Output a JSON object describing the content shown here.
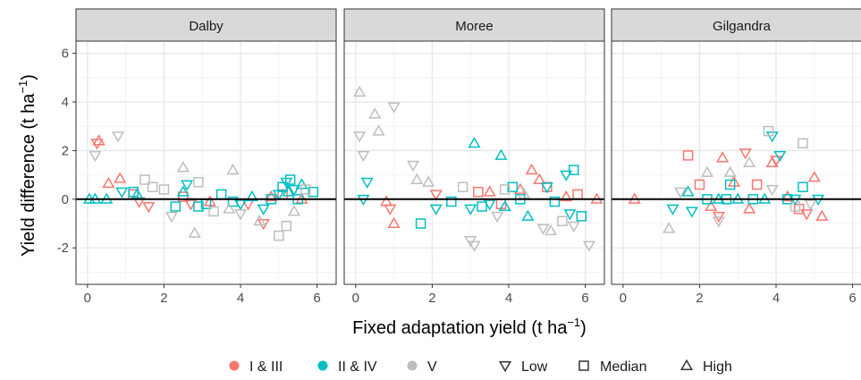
{
  "chart_data": {
    "type": "scatter",
    "xlabel": "Fixed adaptation yield (t  ha",
    "xlabel_sup": "−1",
    "xlabel_end": ")",
    "ylabel": "Yield difference (t  ha",
    "ylabel_sup": "−1",
    "ylabel_end": ")",
    "xlim": [
      -0.3,
      6.5
    ],
    "ylim": [
      -3.5,
      6.5
    ],
    "x_ticks": [
      0,
      2,
      4,
      6
    ],
    "y_ticks": [
      -2,
      0,
      2,
      4,
      6
    ],
    "grid": true,
    "legend_position": "bottom",
    "colors": {
      "I & III": "#f8766d",
      "II & IV": "#00bfc4",
      "V": "#bebebe"
    },
    "legend": {
      "colors": [
        "I & III",
        "II & IV",
        "V"
      ],
      "shapes": [
        {
          "label": "Low",
          "shape": "down"
        },
        {
          "label": "Median",
          "shape": "square"
        },
        {
          "label": "High",
          "shape": "up"
        }
      ]
    },
    "panels": [
      {
        "title": "Dalby",
        "points": [
          {
            "x": 0.25,
            "y": 2.3,
            "g": "I & III",
            "s": "down"
          },
          {
            "x": 0.3,
            "y": 2.4,
            "g": "I & III",
            "s": "up"
          },
          {
            "x": 0.55,
            "y": 0.65,
            "g": "I & III",
            "s": "up"
          },
          {
            "x": 0.85,
            "y": 0.85,
            "g": "I & III",
            "s": "up"
          },
          {
            "x": 1.2,
            "y": 0.2,
            "g": "I & III",
            "s": "square"
          },
          {
            "x": 1.35,
            "y": -0.1,
            "g": "I & III",
            "s": "down"
          },
          {
            "x": 1.6,
            "y": -0.3,
            "g": "I & III",
            "s": "down"
          },
          {
            "x": 2.5,
            "y": 0.1,
            "g": "I & III",
            "s": "square"
          },
          {
            "x": 2.7,
            "y": -0.2,
            "g": "I & III",
            "s": "down"
          },
          {
            "x": 3.2,
            "y": -0.1,
            "g": "I & III",
            "s": "up"
          },
          {
            "x": 4.2,
            "y": -0.2,
            "g": "I & III",
            "s": "down"
          },
          {
            "x": 4.6,
            "y": -1.0,
            "g": "I & III",
            "s": "down"
          },
          {
            "x": 4.8,
            "y": 0.1,
            "g": "I & III",
            "s": "up"
          },
          {
            "x": 5.1,
            "y": 0.2,
            "g": "I & III",
            "s": "square"
          },
          {
            "x": 5.6,
            "y": 0.0,
            "g": "I & III",
            "s": "up"
          },
          {
            "x": 0.05,
            "y": 0.0,
            "g": "II & IV",
            "s": "up"
          },
          {
            "x": 0.2,
            "y": 0.0,
            "g": "II & IV",
            "s": "up"
          },
          {
            "x": 0.5,
            "y": 0.0,
            "g": "II & IV",
            "s": "up"
          },
          {
            "x": 0.9,
            "y": 0.3,
            "g": "II & IV",
            "s": "down"
          },
          {
            "x": 1.2,
            "y": 0.3,
            "g": "II & IV",
            "s": "square"
          },
          {
            "x": 1.3,
            "y": 0.2,
            "g": "II & IV",
            "s": "up"
          },
          {
            "x": 2.3,
            "y": -0.3,
            "g": "II & IV",
            "s": "square"
          },
          {
            "x": 2.5,
            "y": 0.3,
            "g": "II & IV",
            "s": "up"
          },
          {
            "x": 2.6,
            "y": 0.6,
            "g": "II & IV",
            "s": "down"
          },
          {
            "x": 2.9,
            "y": -0.3,
            "g": "II & IV",
            "s": "square"
          },
          {
            "x": 3.1,
            "y": -0.2,
            "g": "II & IV",
            "s": "square"
          },
          {
            "x": 3.5,
            "y": 0.2,
            "g": "II & IV",
            "s": "square"
          },
          {
            "x": 3.8,
            "y": -0.1,
            "g": "II & IV",
            "s": "square"
          },
          {
            "x": 4.0,
            "y": -0.2,
            "g": "II & IV",
            "s": "down"
          },
          {
            "x": 4.3,
            "y": 0.1,
            "g": "II & IV",
            "s": "up"
          },
          {
            "x": 4.6,
            "y": -0.4,
            "g": "II & IV",
            "s": "down"
          },
          {
            "x": 4.8,
            "y": 0.0,
            "g": "II & IV",
            "s": "square"
          },
          {
            "x": 5.0,
            "y": 0.2,
            "g": "II & IV",
            "s": "down"
          },
          {
            "x": 5.1,
            "y": 0.5,
            "g": "II & IV",
            "s": "square"
          },
          {
            "x": 5.2,
            "y": 0.7,
            "g": "II & IV",
            "s": "down"
          },
          {
            "x": 5.25,
            "y": 0.3,
            "g": "II & IV",
            "s": "up"
          },
          {
            "x": 5.3,
            "y": 0.8,
            "g": "II & IV",
            "s": "square"
          },
          {
            "x": 5.4,
            "y": 0.4,
            "g": "II & IV",
            "s": "down"
          },
          {
            "x": 5.5,
            "y": 0.0,
            "g": "II & IV",
            "s": "square"
          },
          {
            "x": 5.6,
            "y": 0.6,
            "g": "II & IV",
            "s": "up"
          },
          {
            "x": 5.9,
            "y": 0.3,
            "g": "II & IV",
            "s": "square"
          },
          {
            "x": 0.2,
            "y": 1.8,
            "g": "V",
            "s": "down"
          },
          {
            "x": 0.8,
            "y": 2.6,
            "g": "V",
            "s": "down"
          },
          {
            "x": 1.5,
            "y": 0.8,
            "g": "V",
            "s": "square"
          },
          {
            "x": 1.7,
            "y": 0.5,
            "g": "V",
            "s": "square"
          },
          {
            "x": 2.0,
            "y": 0.4,
            "g": "V",
            "s": "square"
          },
          {
            "x": 2.2,
            "y": -0.7,
            "g": "V",
            "s": "down"
          },
          {
            "x": 2.5,
            "y": 1.3,
            "g": "V",
            "s": "up"
          },
          {
            "x": 2.8,
            "y": -1.4,
            "g": "V",
            "s": "up"
          },
          {
            "x": 2.9,
            "y": 0.7,
            "g": "V",
            "s": "square"
          },
          {
            "x": 3.3,
            "y": -0.5,
            "g": "V",
            "s": "square"
          },
          {
            "x": 3.7,
            "y": -0.4,
            "g": "V",
            "s": "up"
          },
          {
            "x": 3.8,
            "y": 1.2,
            "g": "V",
            "s": "up"
          },
          {
            "x": 4.0,
            "y": -0.6,
            "g": "V",
            "s": "down"
          },
          {
            "x": 4.5,
            "y": -0.9,
            "g": "V",
            "s": "up"
          },
          {
            "x": 5.0,
            "y": -1.5,
            "g": "V",
            "s": "square"
          },
          {
            "x": 5.2,
            "y": -1.1,
            "g": "V",
            "s": "square"
          },
          {
            "x": 5.4,
            "y": -0.5,
            "g": "V",
            "s": "up"
          },
          {
            "x": 5.7,
            "y": 0.4,
            "g": "V",
            "s": "square"
          }
        ]
      },
      {
        "title": "Moree",
        "points": [
          {
            "x": 0.8,
            "y": -0.1,
            "g": "I & III",
            "s": "up"
          },
          {
            "x": 0.9,
            "y": -0.4,
            "g": "I & III",
            "s": "down"
          },
          {
            "x": 1.0,
            "y": -1.0,
            "g": "I & III",
            "s": "up"
          },
          {
            "x": 2.1,
            "y": 0.2,
            "g": "I & III",
            "s": "down"
          },
          {
            "x": 3.2,
            "y": 0.3,
            "g": "I & III",
            "s": "square"
          },
          {
            "x": 3.5,
            "y": 0.3,
            "g": "I & III",
            "s": "up"
          },
          {
            "x": 3.8,
            "y": -0.2,
            "g": "I & III",
            "s": "square"
          },
          {
            "x": 4.3,
            "y": 0.4,
            "g": "I & III",
            "s": "up"
          },
          {
            "x": 4.6,
            "y": 1.2,
            "g": "I & III",
            "s": "up"
          },
          {
            "x": 4.8,
            "y": 0.8,
            "g": "I & III",
            "s": "up"
          },
          {
            "x": 5.0,
            "y": 0.5,
            "g": "I & III",
            "s": "square"
          },
          {
            "x": 5.5,
            "y": 0.1,
            "g": "I & III",
            "s": "up"
          },
          {
            "x": 5.8,
            "y": 0.2,
            "g": "I & III",
            "s": "square"
          },
          {
            "x": 6.3,
            "y": 0.0,
            "g": "I & III",
            "s": "up"
          },
          {
            "x": 0.2,
            "y": 0.0,
            "g": "II & IV",
            "s": "down"
          },
          {
            "x": 0.3,
            "y": 0.7,
            "g": "II & IV",
            "s": "down"
          },
          {
            "x": 1.7,
            "y": -1.0,
            "g": "II & IV",
            "s": "square"
          },
          {
            "x": 2.1,
            "y": -0.4,
            "g": "II & IV",
            "s": "down"
          },
          {
            "x": 2.5,
            "y": -0.1,
            "g": "II & IV",
            "s": "square"
          },
          {
            "x": 3.0,
            "y": -0.4,
            "g": "II & IV",
            "s": "down"
          },
          {
            "x": 3.1,
            "y": 2.3,
            "g": "II & IV",
            "s": "up"
          },
          {
            "x": 3.3,
            "y": -0.3,
            "g": "II & IV",
            "s": "square"
          },
          {
            "x": 3.5,
            "y": -0.2,
            "g": "II & IV",
            "s": "down"
          },
          {
            "x": 3.8,
            "y": 1.8,
            "g": "II & IV",
            "s": "up"
          },
          {
            "x": 3.9,
            "y": -0.3,
            "g": "II & IV",
            "s": "up"
          },
          {
            "x": 4.1,
            "y": 0.5,
            "g": "II & IV",
            "s": "square"
          },
          {
            "x": 4.3,
            "y": 0.0,
            "g": "II & IV",
            "s": "square"
          },
          {
            "x": 4.5,
            "y": -0.7,
            "g": "II & IV",
            "s": "up"
          },
          {
            "x": 5.0,
            "y": 0.5,
            "g": "II & IV",
            "s": "down"
          },
          {
            "x": 5.2,
            "y": -0.1,
            "g": "II & IV",
            "s": "square"
          },
          {
            "x": 5.5,
            "y": 1.0,
            "g": "II & IV",
            "s": "down"
          },
          {
            "x": 5.6,
            "y": -0.6,
            "g": "II & IV",
            "s": "down"
          },
          {
            "x": 5.7,
            "y": 1.2,
            "g": "II & IV",
            "s": "square"
          },
          {
            "x": 5.9,
            "y": -0.7,
            "g": "II & IV",
            "s": "square"
          },
          {
            "x": 0.1,
            "y": 4.4,
            "g": "V",
            "s": "up"
          },
          {
            "x": 0.1,
            "y": 2.6,
            "g": "V",
            "s": "down"
          },
          {
            "x": 0.2,
            "y": 1.8,
            "g": "V",
            "s": "down"
          },
          {
            "x": 0.5,
            "y": 3.5,
            "g": "V",
            "s": "up"
          },
          {
            "x": 0.6,
            "y": 2.8,
            "g": "V",
            "s": "up"
          },
          {
            "x": 1.0,
            "y": 3.8,
            "g": "V",
            "s": "down"
          },
          {
            "x": 1.5,
            "y": 1.4,
            "g": "V",
            "s": "down"
          },
          {
            "x": 1.6,
            "y": 0.8,
            "g": "V",
            "s": "up"
          },
          {
            "x": 1.9,
            "y": 0.7,
            "g": "V",
            "s": "up"
          },
          {
            "x": 2.8,
            "y": 0.5,
            "g": "V",
            "s": "square"
          },
          {
            "x": 3.0,
            "y": -1.7,
            "g": "V",
            "s": "down"
          },
          {
            "x": 3.1,
            "y": -1.9,
            "g": "V",
            "s": "down"
          },
          {
            "x": 3.7,
            "y": -0.7,
            "g": "V",
            "s": "down"
          },
          {
            "x": 3.9,
            "y": 0.4,
            "g": "V",
            "s": "square"
          },
          {
            "x": 4.4,
            "y": 0.2,
            "g": "V",
            "s": "up"
          },
          {
            "x": 4.9,
            "y": -1.2,
            "g": "V",
            "s": "down"
          },
          {
            "x": 5.1,
            "y": -1.3,
            "g": "V",
            "s": "up"
          },
          {
            "x": 5.4,
            "y": -0.9,
            "g": "V",
            "s": "square"
          },
          {
            "x": 5.7,
            "y": -1.1,
            "g": "V",
            "s": "down"
          },
          {
            "x": 6.1,
            "y": -1.9,
            "g": "V",
            "s": "down"
          }
        ]
      },
      {
        "title": "Gilgandra",
        "points": [
          {
            "x": 0.3,
            "y": 0.0,
            "g": "I & III",
            "s": "up"
          },
          {
            "x": 1.7,
            "y": 1.8,
            "g": "I & III",
            "s": "square"
          },
          {
            "x": 2.0,
            "y": 0.6,
            "g": "I & III",
            "s": "square"
          },
          {
            "x": 2.3,
            "y": -0.3,
            "g": "I & III",
            "s": "up"
          },
          {
            "x": 2.5,
            "y": -0.7,
            "g": "I & III",
            "s": "down"
          },
          {
            "x": 2.6,
            "y": 1.7,
            "g": "I & III",
            "s": "up"
          },
          {
            "x": 2.9,
            "y": 0.7,
            "g": "I & III",
            "s": "up"
          },
          {
            "x": 3.2,
            "y": 1.9,
            "g": "I & III",
            "s": "down"
          },
          {
            "x": 3.3,
            "y": -0.4,
            "g": "I & III",
            "s": "up"
          },
          {
            "x": 3.5,
            "y": 0.6,
            "g": "I & III",
            "s": "square"
          },
          {
            "x": 3.9,
            "y": 1.5,
            "g": "I & III",
            "s": "up"
          },
          {
            "x": 4.0,
            "y": 1.6,
            "g": "I & III",
            "s": "down"
          },
          {
            "x": 4.3,
            "y": 0.1,
            "g": "I & III",
            "s": "up"
          },
          {
            "x": 4.6,
            "y": -0.4,
            "g": "I & III",
            "s": "square"
          },
          {
            "x": 4.8,
            "y": -0.6,
            "g": "I & III",
            "s": "down"
          },
          {
            "x": 5.0,
            "y": 0.9,
            "g": "I & III",
            "s": "up"
          },
          {
            "x": 5.2,
            "y": -0.7,
            "g": "I & III",
            "s": "up"
          },
          {
            "x": 1.3,
            "y": -0.4,
            "g": "II & IV",
            "s": "down"
          },
          {
            "x": 1.7,
            "y": 0.3,
            "g": "II & IV",
            "s": "up"
          },
          {
            "x": 1.8,
            "y": -0.5,
            "g": "II & IV",
            "s": "down"
          },
          {
            "x": 2.2,
            "y": 0.0,
            "g": "II & IV",
            "s": "square"
          },
          {
            "x": 2.5,
            "y": 0.0,
            "g": "II & IV",
            "s": "up"
          },
          {
            "x": 2.7,
            "y": 0.0,
            "g": "II & IV",
            "s": "square"
          },
          {
            "x": 2.8,
            "y": 0.6,
            "g": "II & IV",
            "s": "square"
          },
          {
            "x": 3.0,
            "y": 0.0,
            "g": "II & IV",
            "s": "up"
          },
          {
            "x": 3.4,
            "y": 0.0,
            "g": "II & IV",
            "s": "square"
          },
          {
            "x": 3.7,
            "y": 0.0,
            "g": "II & IV",
            "s": "up"
          },
          {
            "x": 3.9,
            "y": 2.6,
            "g": "II & IV",
            "s": "down"
          },
          {
            "x": 4.1,
            "y": 1.8,
            "g": "II & IV",
            "s": "down"
          },
          {
            "x": 4.3,
            "y": 0.0,
            "g": "II & IV",
            "s": "square"
          },
          {
            "x": 4.5,
            "y": 0.0,
            "g": "II & IV",
            "s": "down"
          },
          {
            "x": 4.7,
            "y": 0.5,
            "g": "II & IV",
            "s": "square"
          },
          {
            "x": 5.1,
            "y": 0.0,
            "g": "II & IV",
            "s": "down"
          },
          {
            "x": 1.2,
            "y": -1.2,
            "g": "V",
            "s": "up"
          },
          {
            "x": 1.5,
            "y": 0.3,
            "g": "V",
            "s": "down"
          },
          {
            "x": 2.2,
            "y": 1.1,
            "g": "V",
            "s": "up"
          },
          {
            "x": 2.5,
            "y": -0.9,
            "g": "V",
            "s": "down"
          },
          {
            "x": 2.8,
            "y": 1.1,
            "g": "V",
            "s": "up"
          },
          {
            "x": 3.3,
            "y": 1.5,
            "g": "V",
            "s": "up"
          },
          {
            "x": 3.8,
            "y": 2.8,
            "g": "V",
            "s": "square"
          },
          {
            "x": 3.9,
            "y": 0.4,
            "g": "V",
            "s": "down"
          },
          {
            "x": 4.5,
            "y": -0.3,
            "g": "V",
            "s": "square"
          },
          {
            "x": 4.7,
            "y": 2.3,
            "g": "V",
            "s": "square"
          },
          {
            "x": 4.9,
            "y": -0.2,
            "g": "V",
            "s": "down"
          }
        ]
      }
    ]
  }
}
